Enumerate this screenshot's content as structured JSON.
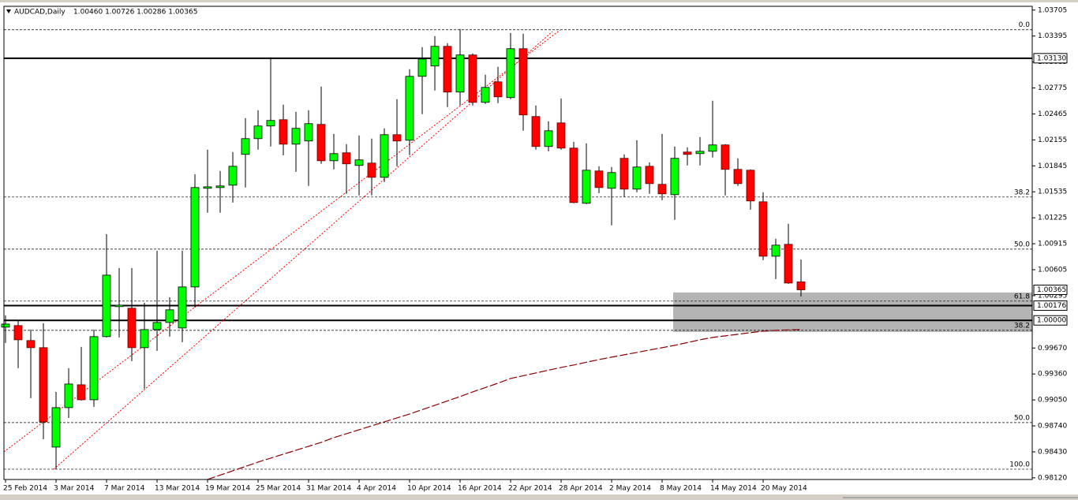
{
  "chart_data": {
    "type": "candlestick",
    "title": "AUDCAD,Daily",
    "ohlc_label": "1.00460 1.00726 1.00286 1.00365",
    "categories": [
      "25 Feb 2014",
      null,
      null,
      null,
      "3 Mar 2014",
      null,
      null,
      null,
      "7 Mar 2014",
      null,
      null,
      null,
      "13 Mar 2014",
      null,
      null,
      null,
      "19 Mar 2014",
      null,
      null,
      null,
      "25 Mar 2014",
      null,
      null,
      null,
      "31 Mar 2014",
      null,
      null,
      null,
      "4 Apr 2014",
      null,
      null,
      null,
      "10 Apr 2014",
      null,
      null,
      null,
      "16 Apr 2014",
      null,
      null,
      null,
      "22 Apr 2014",
      null,
      null,
      null,
      "28 Apr 2014",
      null,
      null,
      null,
      "2 May 2014",
      null,
      null,
      null,
      "8 May 2014",
      null,
      null,
      null,
      "14 May 2014",
      null,
      null,
      null,
      "20 May 2014",
      null,
      null,
      null
    ],
    "candles": {
      "up_color": "#00ff00",
      "down_color": "#ff0000",
      "open": [
        0.99919,
        0.99938,
        0.99759,
        0.99674,
        0.98487,
        0.98958,
        0.99231,
        0.99052,
        0.99806,
        1.00164,
        1.00145,
        0.99674,
        0.9989,
        0.99975,
        0.99909,
        1.00399,
        1.01577,
        1.01586,
        1.01614,
        1.01982,
        1.0217,
        1.02321,
        1.02396,
        1.02104,
        1.02142,
        1.0234,
        1.01906,
        1.02001,
        1.0185,
        1.01878,
        1.01708,
        1.02217,
        1.02151,
        1.02914,
        1.03037,
        1.03272,
        1.02726,
        1.03169,
        1.02603,
        1.02848,
        1.0266,
        1.03244,
        1.02434,
        1.02076,
        1.02358,
        1.02057,
        1.01398,
        1.01784,
        1.01577,
        1.01935,
        1.01567,
        1.0184,
        1.01624,
        1.01501,
        1.0201,
        1.01991,
        1.02019,
        1.02095,
        1.01803,
        1.01793,
        1.01416,
        1.00766,
        1.00908,
        1.0046
      ],
      "high": [
        1.0006,
        1.00003,
        0.9989,
        0.99966,
        0.99146,
        0.99429,
        0.99683,
        0.9989,
        1.0103,
        1.00625,
        1.00625,
        1.00211,
        1.00832,
        1.00277,
        1.00832,
        1.01746,
        1.02038,
        1.01784,
        1.0201,
        1.02415,
        1.02509,
        1.0314,
        1.02575,
        1.0249,
        1.02509,
        1.02792,
        1.02227,
        1.02104,
        1.02208,
        1.0217,
        1.02293,
        1.02641,
        1.02999,
        1.03263,
        1.03395,
        1.0331,
        1.03479,
        1.03187,
        1.02933,
        1.03027,
        1.03432,
        1.03423,
        1.02566,
        1.02377,
        1.0265,
        1.02132,
        1.02114,
        1.0184,
        1.01831,
        1.01982,
        1.02151,
        1.01887,
        1.02227,
        1.02076,
        1.02066,
        1.02189,
        1.02622,
        1.02104,
        1.01935,
        1.01803,
        1.0153,
        1.00974,
        1.01153,
        1.00726
      ],
      "low": [
        0.9973,
        0.99429,
        0.99071,
        0.98581,
        0.98223,
        0.98835,
        0.99043,
        0.98967,
        0.99796,
        0.99796,
        0.99514,
        0.99184,
        0.99636,
        0.99806,
        0.9974,
        1.00154,
        1.01285,
        1.01285,
        1.01407,
        1.01586,
        1.02038,
        1.02076,
        1.01972,
        1.01774,
        1.01605,
        1.01869,
        1.01803,
        1.01511,
        1.01492,
        1.01492,
        1.01652,
        1.0184,
        1.01972,
        1.02462,
        1.02745,
        1.02547,
        1.02566,
        1.02566,
        1.02585,
        1.02594,
        1.02641,
        1.02264,
        1.02038,
        1.02019,
        1.02038,
        1.01398,
        1.01388,
        1.0152,
        1.01134,
        1.01473,
        1.0153,
        1.01511,
        1.01435,
        1.012,
        1.0185,
        1.0185,
        1.01944,
        1.01492,
        1.01605,
        1.01322,
        1.00719,
        1.00493,
        1.00437,
        1.00286
      ],
      "close": [
        0.99956,
        0.99768,
        0.99674,
        0.98788,
        0.98958,
        0.9924,
        0.99052,
        0.99806,
        1.0054,
        1.00182,
        0.99674,
        0.9989,
        0.99975,
        1.00126,
        1.00399,
        1.01586,
        1.01595,
        1.01605,
        1.0184,
        1.0217,
        1.02321,
        1.02387,
        1.02104,
        1.02293,
        1.02349,
        1.01906,
        1.01991,
        1.01869,
        1.01916,
        1.01708,
        1.02217,
        1.02142,
        1.02914,
        1.03121,
        1.03272,
        1.02726,
        1.03169,
        1.02603,
        1.02782,
        1.02669,
        1.03244,
        1.02453,
        1.02076,
        1.02264,
        1.02057,
        1.01407,
        1.01793,
        1.01586,
        1.01765,
        1.01567,
        1.01831,
        1.01633,
        1.01511,
        1.01935,
        1.01982,
        1.02019,
        1.02095,
        1.01803,
        1.01633,
        1.01426,
        1.00766,
        1.00898,
        1.00446,
        1.00365
      ]
    },
    "moving_average": {
      "color": "#8b0000",
      "values": [
        null,
        null,
        null,
        null,
        null,
        null,
        null,
        null,
        null,
        null,
        null,
        null,
        null,
        null,
        null,
        null,
        0.98101,
        0.98152,
        0.98204,
        0.98256,
        0.98308,
        0.98355,
        0.98402,
        0.98449,
        0.98496,
        0.98543,
        0.986,
        0.98647,
        0.98694,
        0.98741,
        0.98788,
        0.98835,
        0.98882,
        0.98934,
        0.98986,
        0.99038,
        0.9909,
        0.99146,
        0.99198,
        0.9925,
        0.99306,
        0.99339,
        0.99372,
        0.99405,
        0.99438,
        0.99467,
        0.995,
        0.99532,
        0.99561,
        0.99589,
        0.99617,
        0.99646,
        0.99674,
        0.99702,
        0.99735,
        0.99768,
        0.99796,
        0.99815,
        0.99834,
        0.99853,
        0.99872,
        0.99881,
        0.99886,
        0.9989
      ]
    },
    "levels": [
      {
        "value": 1.0313,
        "label": "1.03130"
      },
      {
        "value": 1.00176,
        "label": "1.00176"
      },
      {
        "value": 1.0,
        "label": "1.00000"
      }
    ],
    "fib_levels": [
      {
        "price": 1.0347,
        "label": "0.0"
      },
      {
        "price": 1.01473,
        "label": "38.2"
      },
      {
        "price": 1.00851,
        "label": "50.0"
      },
      {
        "price": 1.0023,
        "label": "61.8"
      },
      {
        "price": 0.99881,
        "label": "38.2"
      },
      {
        "price": 0.98779,
        "label": "50.0"
      },
      {
        "price": 0.98223,
        "label": "100.0"
      }
    ],
    "zone": {
      "top": 1.00333,
      "bottom": 0.99862,
      "color": "#b4b4b4"
    },
    "ylim": [
      0.981,
      1.0375
    ],
    "yticks": [
      1.03705,
      1.03395,
      1.03085,
      1.02775,
      1.02465,
      1.02155,
      1.01845,
      1.01535,
      1.01225,
      1.00915,
      1.00605,
      1.00295,
      {
        "value": 0.9967,
        "label": "0.99670"
      },
      {
        "value": 0.9936,
        "label": "0.99360"
      },
      {
        "value": 0.9905,
        "label": "0.99050"
      },
      {
        "value": 0.9874,
        "label": "0.98740"
      },
      {
        "value": 0.9843,
        "label": "0.98430"
      },
      {
        "value": 0.9812,
        "label": "0.98120"
      }
    ]
  }
}
